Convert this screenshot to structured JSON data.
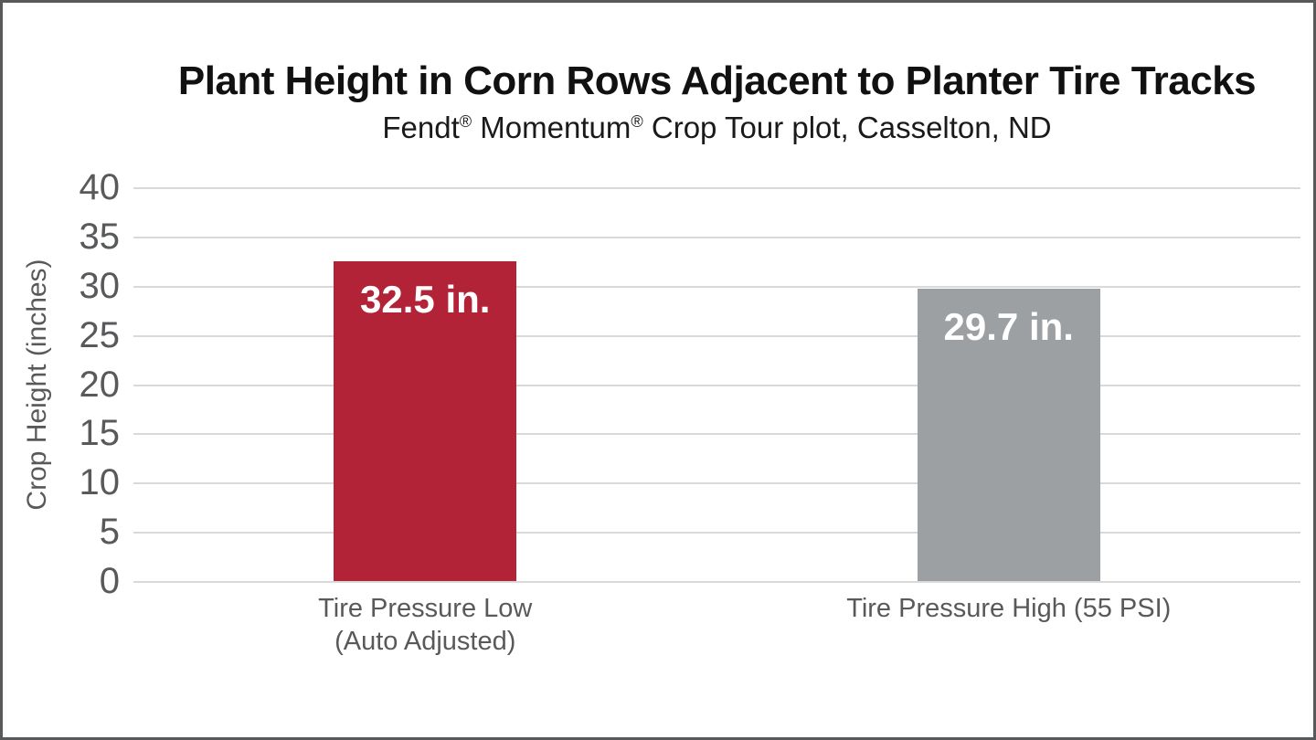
{
  "chart_data": {
    "type": "bar",
    "title": "Plant Height in Corn Rows Adjacent to Planter Tire Tracks",
    "subtitle": "Fendt® Momentum® Crop Tour plot, Casselton, ND",
    "ylabel": "Crop Height (inches)",
    "xlabel": "",
    "ylim": [
      0,
      40
    ],
    "ytick_step": 5,
    "yticks": [
      0,
      5,
      10,
      15,
      20,
      25,
      30,
      35,
      40
    ],
    "grid": "horizontal-only",
    "legend_position": "none",
    "categories": [
      "Tire Pressure Low\n(Auto Adjusted)",
      "Tire Pressure High (55 PSI)"
    ],
    "values": [
      32.5,
      29.7
    ],
    "value_labels": [
      "32.5 in.",
      "29.7 in."
    ],
    "bar_colors": [
      "#b22338",
      "#9da0a3"
    ],
    "value_label_color": "#ffffff",
    "axis_text_color": "#58595b",
    "gridline_color": "#d9d9d9",
    "frame_border_color": "#58595b",
    "background_color": "#ffffff"
  }
}
